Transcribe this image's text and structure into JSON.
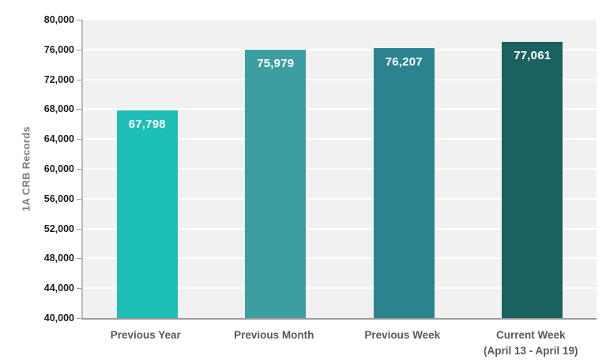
{
  "chart_data": {
    "type": "bar",
    "title": "",
    "categories": [
      "Previous Year",
      "Previous Month",
      "Previous Week",
      "Current Week\n(April 13 - April 19)"
    ],
    "values": [
      67798,
      75979,
      76207,
      77061
    ],
    "value_labels": [
      "67,798",
      "75,979",
      "76,207",
      "77,061"
    ],
    "bar_colors": [
      "#1CBEB6",
      "#3C9EA1",
      "#2A838E",
      "#1A625F"
    ],
    "xlabel": "",
    "ylabel": "1A CRB Records",
    "ylim": [
      40000,
      80000
    ],
    "ytick_step": 4000,
    "ytick_labels": [
      "40,000",
      "44,000",
      "48,000",
      "52,000",
      "56,000",
      "60,000",
      "64,000",
      "68,000",
      "72,000",
      "76,000",
      "80,000"
    ],
    "grid": true,
    "legend": "none",
    "plot_background": "#F1F1F1",
    "gridline_color": "#FFFFFF",
    "value_label_color": "#FFFFFF",
    "axis_text_color": "#1a1a1a",
    "category_text_color": "#595959"
  }
}
